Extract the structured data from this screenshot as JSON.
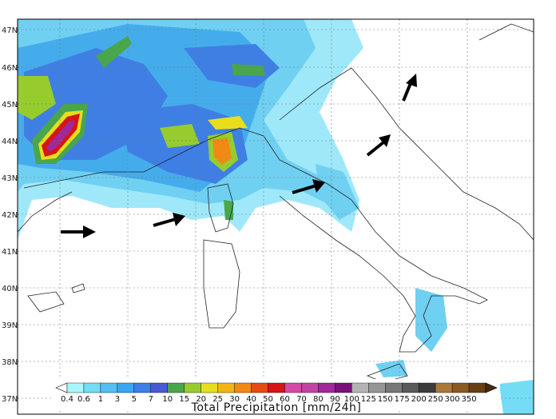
{
  "map": {
    "lat_labels": [
      "47N",
      "46N",
      "45N",
      "44N",
      "43N",
      "42N",
      "41N",
      "40N",
      "39N",
      "38N",
      "37N"
    ],
    "annotation": "wind-direction arrows"
  },
  "colorbar": {
    "title": "Total Precipitation [mm/24h]",
    "levels": [
      "0.4",
      "0.6",
      "1",
      "3",
      "5",
      "7",
      "10",
      "15",
      "20",
      "25",
      "30",
      "40",
      "50",
      "60",
      "70",
      "80",
      "90",
      "100",
      "125",
      "150",
      "175",
      "200",
      "250",
      "300",
      "350"
    ],
    "colors": [
      "#aaf6ff",
      "#74dcf5",
      "#52c0f0",
      "#3aa6ef",
      "#3d7fe6",
      "#4a58d8",
      "#4aa64a",
      "#96cc2e",
      "#e8de1c",
      "#f4b414",
      "#f08a14",
      "#e84a14",
      "#d81414",
      "#d64aa6",
      "#c044a6",
      "#a0289a",
      "#7a107a",
      "#b4b4b4",
      "#969696",
      "#787878",
      "#5a5a5a",
      "#3c3c3c",
      "#aa7838",
      "#8a5a22",
      "#6a3e14",
      "#4a280a"
    ]
  }
}
